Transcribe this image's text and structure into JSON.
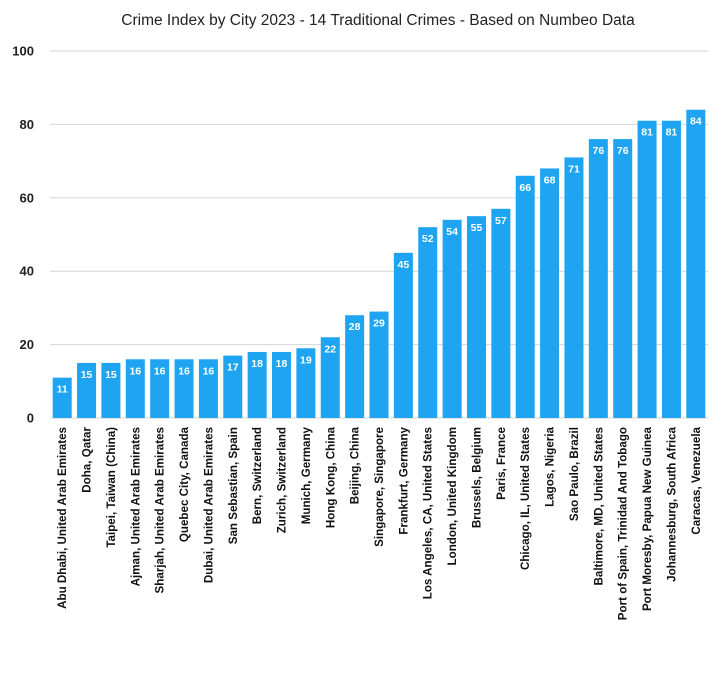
{
  "chart_data": {
    "type": "bar",
    "title": "Crime Index by City 2023 - 14 Traditional Crimes - Based on Numbeo Data",
    "xlabel": "",
    "ylabel": "",
    "ylim": [
      0,
      100
    ],
    "yticks": [
      0,
      20,
      40,
      60,
      80,
      100
    ],
    "grid": true,
    "legend": "none",
    "bar_color": "#1ea4f0",
    "categories": [
      "Abu Dhabi, United Arab Emirates",
      "Doha, Qatar",
      "Taipei, Taiwan (China)",
      "Ajman, United Arab Emirates",
      "Sharjah, United Arab Emirates",
      "Quebec City, Canada",
      "Dubai, United Arab Emirates",
      "San Sebastian, Spain",
      "Bern, Switzerland",
      "Zurich, Switzerland",
      "Munich, Germany",
      "Hong Kong, China",
      "Beijing, China",
      "Singapore, Singapore",
      "Frankfurt, Germany",
      "Los Angeles, CA, United States",
      "London, United Kingdom",
      "Brussels, Belgium",
      "Paris, France",
      "Chicago, IL, United States",
      "Lagos, Nigeria",
      "Sao Paulo, Brazil",
      "Baltimore, MD, United States",
      "Port of Spain, Trinidad And Tobago",
      "Port Moresby, Papua New Guinea",
      "Johannesburg, South Africa",
      "Caracas, Venezuela"
    ],
    "values": [
      11,
      15,
      15,
      16,
      16,
      16,
      16,
      17,
      18,
      18,
      19,
      22,
      28,
      29,
      45,
      52,
      54,
      55,
      57,
      66,
      68,
      71,
      76,
      76,
      81,
      81,
      84
    ],
    "data_labels": [
      "11",
      "15",
      "15",
      "16",
      "16",
      "16",
      "16",
      "17",
      "18",
      "18",
      "19",
      "22",
      "28",
      "29",
      "45",
      "52",
      "54",
      "55",
      "57",
      "66",
      "68",
      "71",
      "76",
      "76",
      "81",
      "81",
      "84"
    ]
  }
}
